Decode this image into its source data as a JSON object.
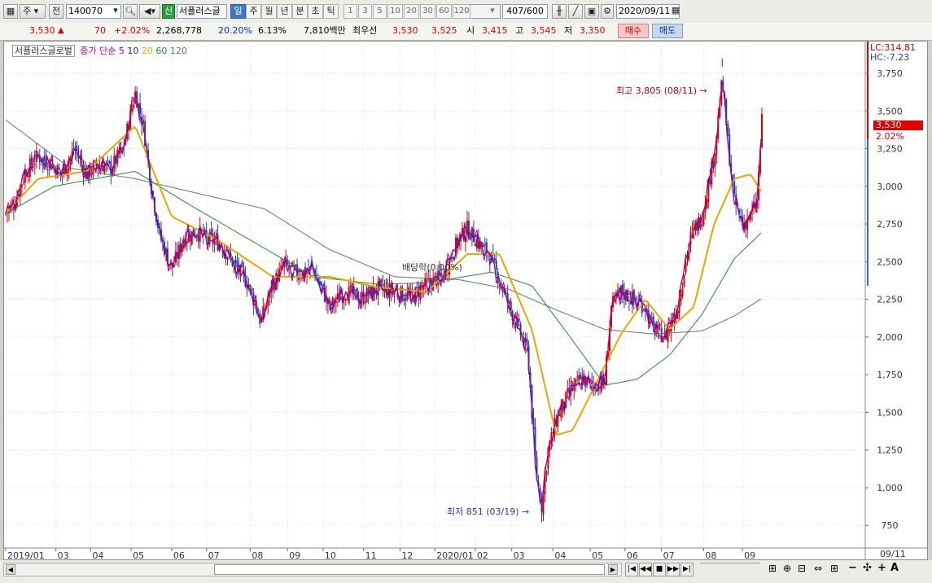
{
  "toolbar": {
    "market": "주",
    "prev_label": "전",
    "code": "140070",
    "new_badge": "신",
    "stock_name": "서플러스글",
    "periods": [
      "일",
      "주",
      "월",
      "년",
      "분",
      "초",
      "틱"
    ],
    "numbers": [
      "1",
      "3",
      "5",
      "10",
      "20",
      "30",
      "60",
      "120"
    ],
    "count": "407",
    "count_total": "/600",
    "date": "2020/09/11"
  },
  "quote": {
    "price": "3,530",
    "change": "70",
    "change_pct": "+2.02%",
    "volume": "2,268,778",
    "vol_ratio": "20.20%",
    "turnover": "6.13%",
    "amount": "7,810백만",
    "best_label": "최우선",
    "best_ask": "3,530",
    "best_bid": "3,525",
    "open_label": "시",
    "open": "3,415",
    "high_label": "고",
    "high": "3,545",
    "low_label": "저",
    "low": "3,350",
    "buy_label": "매수",
    "sell_label": "매도"
  },
  "chart": {
    "legend_name": "서플러스글로벌",
    "legend_ma_label": "종가 단순",
    "ma_periods": [
      "5",
      "10",
      "20",
      "60",
      "120"
    ],
    "lc": "LC:314.81",
    "hc": "HC:-7.23",
    "last_price": "3,530",
    "last_pct": "2.02%",
    "high_note": "최고 3,805 (08/11)",
    "low_note": "최저 851 (03/19)",
    "dividend_note": "배당락(0.00%)",
    "date_end": "09/11"
  },
  "colors": {
    "up": "#e00000",
    "down": "#1a3ec8",
    "ma5": "#c0007a",
    "ma10": "#1a1aa0",
    "ma20": "#e6a800",
    "ma60": "#1f8a3a",
    "ma120": "#707070"
  },
  "chart_data": {
    "type": "candlestick",
    "yticks": [
      750,
      1000,
      1250,
      1500,
      1750,
      2000,
      2250,
      2500,
      2750,
      3000,
      3250,
      3500,
      3750
    ],
    "ylim": [
      600,
      3950
    ],
    "ytick_labels": [
      "750",
      "1,000",
      "1,250",
      "1,500",
      "1,750",
      "2,000",
      "2,250",
      "2,500",
      "2,750",
      "3,000",
      "3,250",
      "3,500",
      "3,750"
    ],
    "xtick_labels": [
      "2019/01",
      "03",
      "04",
      "05",
      "06",
      "07",
      "08",
      "09",
      "10",
      "11",
      "12",
      "2020/01",
      "02",
      "03",
      "04",
      "05",
      "06",
      "07",
      "08",
      "09"
    ],
    "close_path_knots": [
      [
        0,
        2820
      ],
      [
        10,
        2880
      ],
      [
        25,
        3100
      ],
      [
        40,
        3200
      ],
      [
        55,
        3150
      ],
      [
        70,
        3080
      ],
      [
        85,
        3250
      ],
      [
        100,
        3080
      ],
      [
        115,
        3150
      ],
      [
        130,
        3120
      ],
      [
        145,
        3250
      ],
      [
        160,
        3620
      ],
      [
        170,
        3400
      ],
      [
        180,
        3000
      ],
      [
        190,
        2680
      ],
      [
        205,
        2450
      ],
      [
        220,
        2650
      ],
      [
        235,
        2700
      ],
      [
        250,
        2650
      ],
      [
        265,
        2620
      ],
      [
        280,
        2500
      ],
      [
        300,
        2350
      ],
      [
        315,
        2100
      ],
      [
        330,
        2350
      ],
      [
        345,
        2480
      ],
      [
        360,
        2420
      ],
      [
        380,
        2450
      ],
      [
        400,
        2200
      ],
      [
        420,
        2300
      ],
      [
        440,
        2260
      ],
      [
        460,
        2320
      ],
      [
        480,
        2300
      ],
      [
        500,
        2260
      ],
      [
        520,
        2350
      ],
      [
        540,
        2400
      ],
      [
        555,
        2600
      ],
      [
        570,
        2720
      ],
      [
        585,
        2620
      ],
      [
        600,
        2520
      ],
      [
        615,
        2300
      ],
      [
        630,
        2100
      ],
      [
        645,
        1900
      ],
      [
        655,
        1100
      ],
      [
        662,
        880
      ],
      [
        670,
        1250
      ],
      [
        680,
        1450
      ],
      [
        695,
        1620
      ],
      [
        710,
        1720
      ],
      [
        725,
        1680
      ],
      [
        740,
        1700
      ],
      [
        748,
        2200
      ],
      [
        760,
        2300
      ],
      [
        775,
        2250
      ],
      [
        790,
        2200
      ],
      [
        800,
        2050
      ],
      [
        815,
        2000
      ],
      [
        830,
        2200
      ],
      [
        845,
        2650
      ],
      [
        860,
        2800
      ],
      [
        875,
        3200
      ],
      [
        885,
        3700
      ],
      [
        892,
        3300
      ],
      [
        900,
        2900
      ],
      [
        910,
        2750
      ],
      [
        920,
        2800
      ],
      [
        928,
        2900
      ],
      [
        935,
        3520
      ]
    ],
    "ma20_knots": [
      [
        0,
        2820
      ],
      [
        40,
        3050
      ],
      [
        100,
        3100
      ],
      [
        160,
        3400
      ],
      [
        205,
        2800
      ],
      [
        260,
        2650
      ],
      [
        330,
        2400
      ],
      [
        400,
        2400
      ],
      [
        460,
        2330
      ],
      [
        520,
        2300
      ],
      [
        570,
        2550
      ],
      [
        610,
        2550
      ],
      [
        650,
        2050
      ],
      [
        680,
        1350
      ],
      [
        700,
        1380
      ],
      [
        730,
        1700
      ],
      [
        760,
        2020
      ],
      [
        790,
        2250
      ],
      [
        820,
        2050
      ],
      [
        850,
        2200
      ],
      [
        875,
        2750
      ],
      [
        900,
        3050
      ],
      [
        920,
        3080
      ],
      [
        935,
        2950
      ]
    ],
    "ma60_knots": [
      [
        0,
        2820
      ],
      [
        60,
        3000
      ],
      [
        160,
        3100
      ],
      [
        220,
        2900
      ],
      [
        300,
        2650
      ],
      [
        380,
        2400
      ],
      [
        460,
        2350
      ],
      [
        520,
        2360
      ],
      [
        600,
        2430
      ],
      [
        650,
        2340
      ],
      [
        700,
        1980
      ],
      [
        740,
        1680
      ],
      [
        780,
        1720
      ],
      [
        820,
        1880
      ],
      [
        860,
        2150
      ],
      [
        900,
        2520
      ],
      [
        935,
        2700
      ]
    ],
    "ma120_knots": [
      [
        0,
        3440
      ],
      [
        80,
        3120
      ],
      [
        160,
        3050
      ],
      [
        240,
        2950
      ],
      [
        320,
        2850
      ],
      [
        400,
        2580
      ],
      [
        480,
        2400
      ],
      [
        560,
        2380
      ],
      [
        620,
        2320
      ],
      [
        680,
        2180
      ],
      [
        740,
        2050
      ],
      [
        800,
        2020
      ],
      [
        860,
        2040
      ],
      [
        900,
        2140
      ],
      [
        935,
        2260
      ]
    ]
  }
}
